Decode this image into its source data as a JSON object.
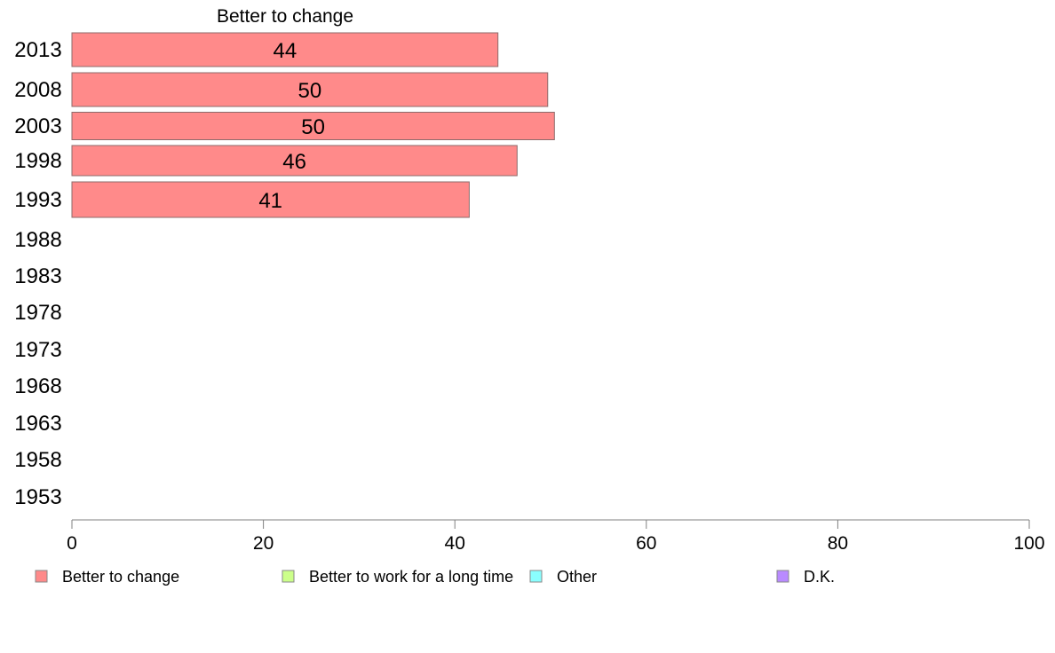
{
  "chart_data": {
    "type": "bar",
    "orientation": "horizontal",
    "title": "Better to change",
    "categories": [
      "2013",
      "2008",
      "2003",
      "1998",
      "1993",
      "1988",
      "1983",
      "1978",
      "1973",
      "1968",
      "1963",
      "1958",
      "1953"
    ],
    "series": [
      {
        "name": "Better to change",
        "color": "#ff8a8a",
        "values": [
          44.5,
          49.7,
          50.4,
          46.5,
          41.5,
          null,
          null,
          null,
          null,
          null,
          null,
          null,
          null
        ],
        "labels": [
          "44",
          "50",
          "50",
          "46",
          "41",
          "",
          "",
          "",
          "",
          "",
          "",
          "",
          ""
        ]
      }
    ],
    "xlim": [
      0,
      100
    ],
    "xticks": [
      "0",
      "20",
      "40",
      "60",
      "80",
      "100"
    ],
    "grid": false,
    "legend_position": "bottom"
  },
  "legend": [
    {
      "label": "Better to change",
      "color": "#ff8a8a"
    },
    {
      "label": "Better to work for a long time",
      "color": "#ccff8a"
    },
    {
      "label": "Other",
      "color": "#8affff"
    },
    {
      "label": "D.K.",
      "color": "#b98aff"
    }
  ]
}
